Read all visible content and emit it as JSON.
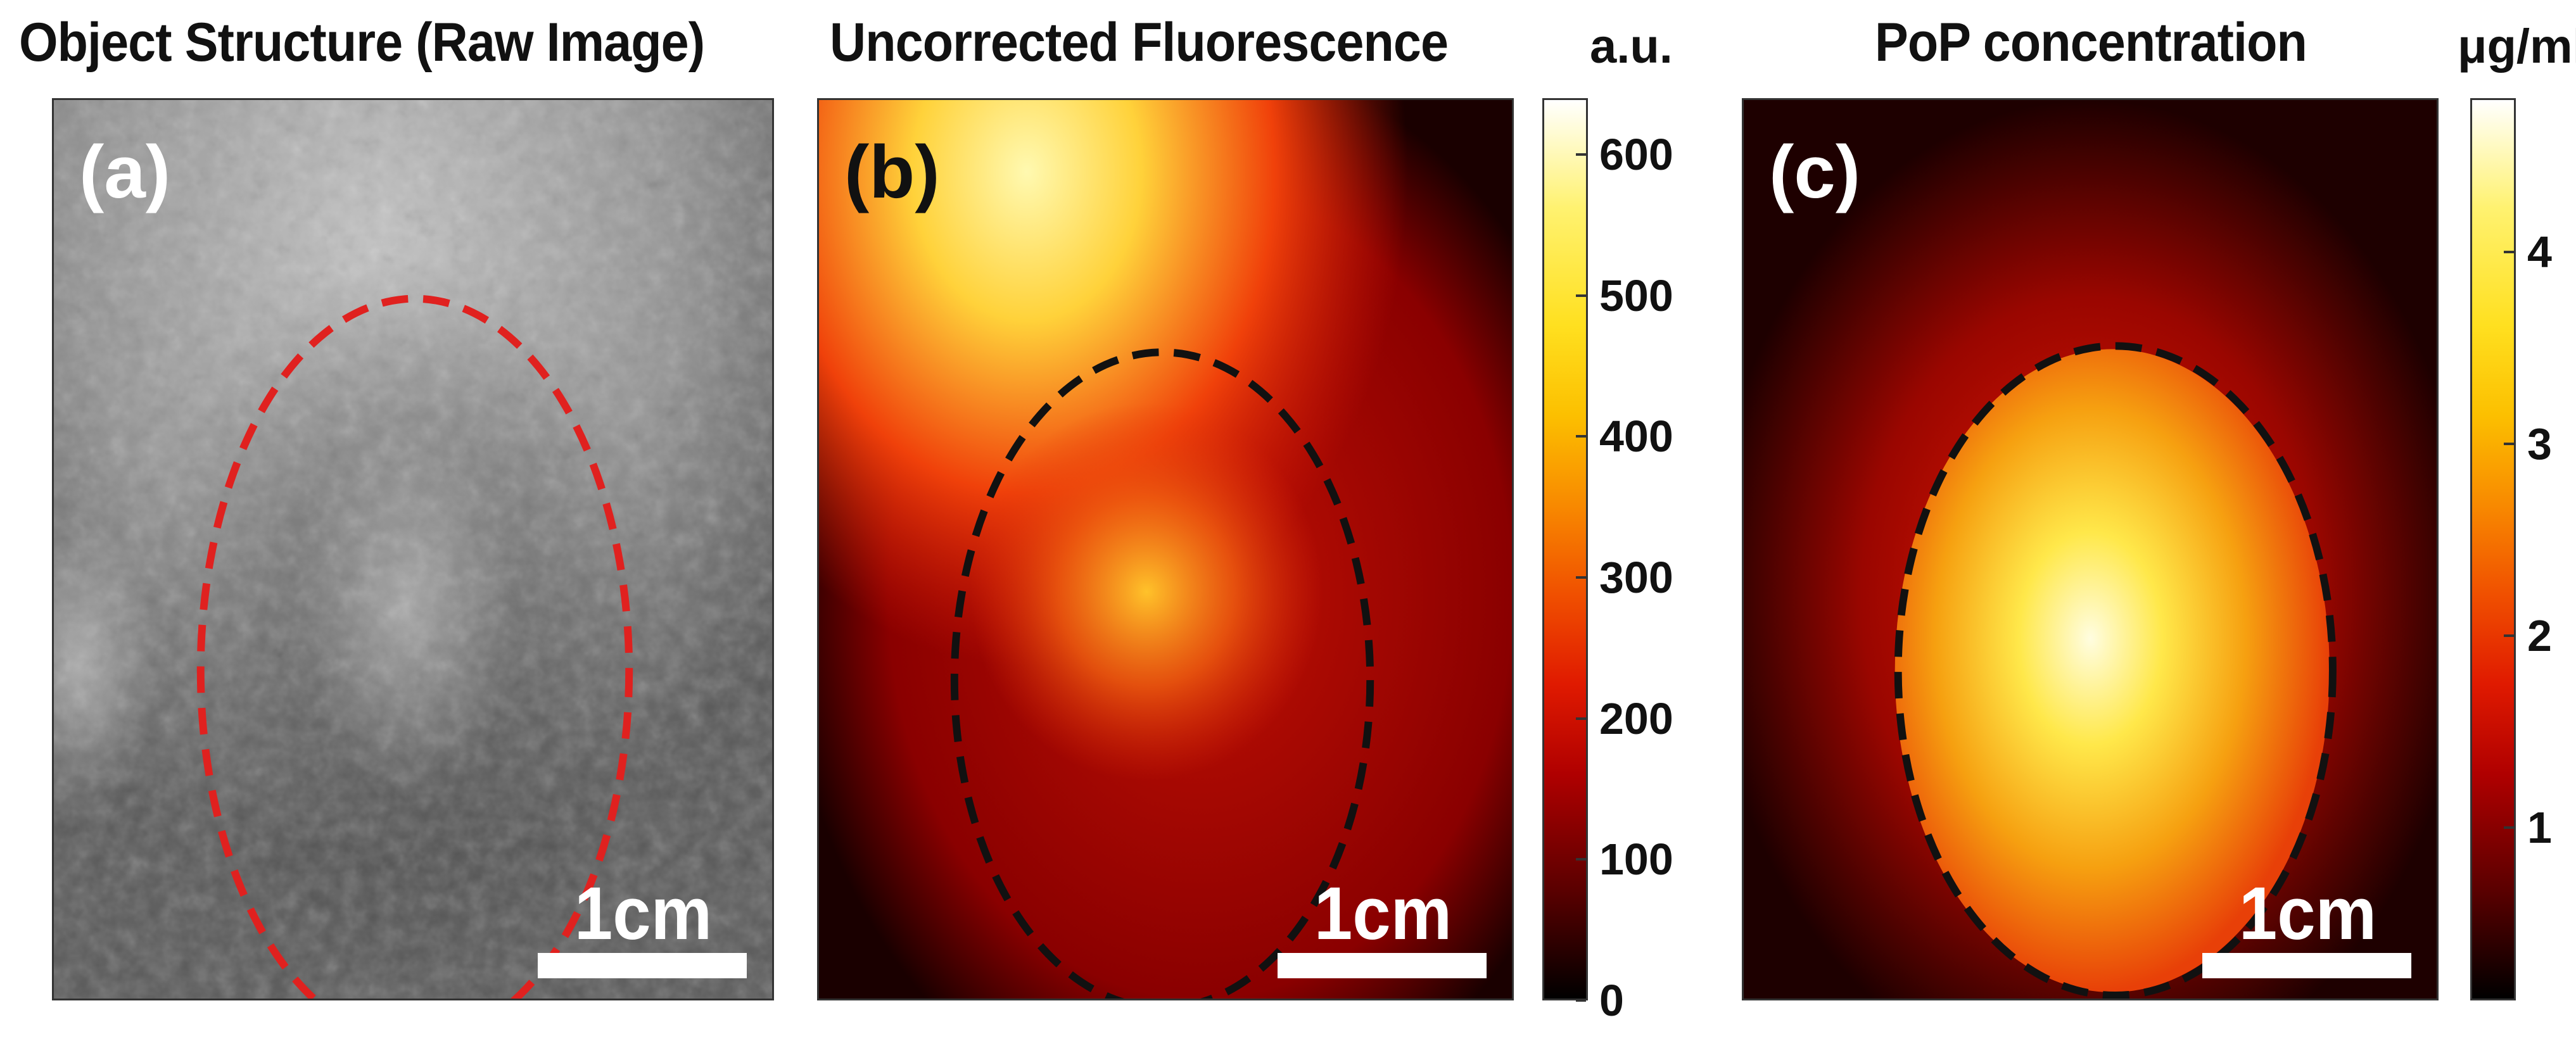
{
  "panels": [
    {
      "title": "Object Structure (Raw Image)",
      "label": "(a)",
      "scale": "1cm",
      "ellipse_color": "#e0211f",
      "label_color": "#ffffff"
    },
    {
      "title": "Uncorrected Fluorescence",
      "label": "(b)",
      "scale": "1cm",
      "ellipse_color": "#111111",
      "label_color": "#111111"
    },
    {
      "title": "PoP concentration",
      "label": "(c)",
      "scale": "1cm",
      "ellipse_color": "#111111",
      "label_color": "#ffffff"
    }
  ],
  "colorbars": [
    {
      "unit": "a.u.",
      "min": 0,
      "max": 640,
      "ticks": [
        "0",
        "100",
        "200",
        "300",
        "400",
        "500",
        "600"
      ],
      "tick_values": [
        0,
        100,
        200,
        300,
        400,
        500,
        600
      ]
    },
    {
      "unit": "μg/ml",
      "min": 0.1,
      "max": 4.8,
      "ticks": [
        "1",
        "2",
        "3",
        "4"
      ],
      "tick_values": [
        1,
        2,
        3,
        4
      ]
    }
  ]
}
